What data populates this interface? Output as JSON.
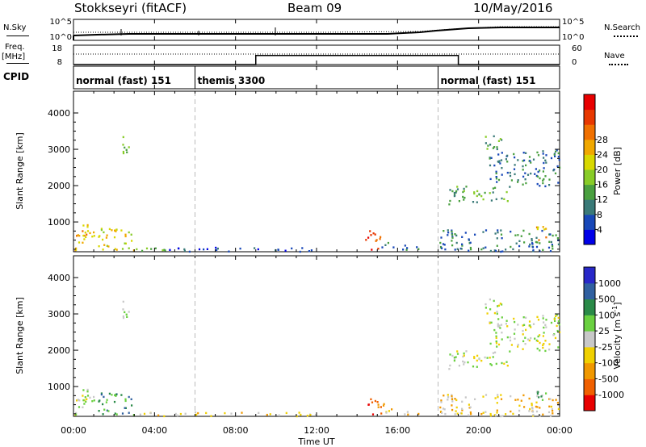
{
  "header": {
    "station": "Stokkseyri (fitACF)",
    "beam": "Beam 09",
    "date": "10/May/2016"
  },
  "noise_panel": {
    "left_label": "N.Sky",
    "right_label": "N.Search",
    "yticks_left": [
      "10^5",
      "10^0"
    ],
    "yticks_right": [
      "10^5",
      "10^0"
    ]
  },
  "freq_panel": {
    "left_label_1": "Freq.",
    "left_label_2": "[MHz]",
    "right_label": "Nave",
    "yticks_left": [
      "18",
      "8"
    ],
    "yticks_right": [
      "60",
      "0"
    ],
    "nave_steps": [
      {
        "from": 0,
        "to": 9,
        "value": 0
      },
      {
        "from": 9,
        "to": 19,
        "value": 28
      },
      {
        "from": 19,
        "to": 24,
        "value": 0
      }
    ]
  },
  "cpid_panel": {
    "label": "CPID",
    "segments": [
      {
        "start": 0,
        "end": 6,
        "text": "normal (fast) 151"
      },
      {
        "start": 6,
        "end": 18,
        "text": "themis 3300"
      },
      {
        "start": 18,
        "end": 24,
        "text": "normal (fast) 151"
      }
    ]
  },
  "x_axis": {
    "label": "Time UT",
    "ticks": [
      "00:00",
      "04:00",
      "08:00",
      "12:00",
      "16:00",
      "20:00",
      "00:00"
    ]
  },
  "y_axis": {
    "label": "Slant Range [km]",
    "ticks": [
      "1000",
      "2000",
      "3000",
      "4000"
    ]
  },
  "power_colorbar": {
    "label": "Power [dB]",
    "ticks": [
      "4",
      "8",
      "12",
      "16",
      "20",
      "24",
      "28"
    ],
    "colors": [
      "#0000e8",
      "#1848b8",
      "#3a7a78",
      "#4aa040",
      "#88cc28",
      "#d8d800",
      "#f0a800",
      "#f07000",
      "#e83800",
      "#e80000"
    ]
  },
  "velocity_colorbar": {
    "label": "Velocity [m s^-1]",
    "ticks": [
      "1000",
      "500",
      "100",
      "25",
      "-25",
      "-100",
      "-500",
      "-1000"
    ],
    "colors": [
      "#2828c8",
      "#3060a0",
      "#2a8a48",
      "#6ad040",
      "#c8c8c8",
      "#f0d000",
      "#f09800",
      "#f06000",
      "#e80000"
    ]
  },
  "chart_data": [
    {
      "type": "heatmap",
      "name": "Power",
      "xlabel": "Time UT",
      "ylabel": "Slant Range [km]",
      "xlim": [
        0,
        24
      ],
      "ylim": [
        180,
        4600
      ],
      "regions": [
        {
          "t0": 0.0,
          "t1": 1.0,
          "r0": 200,
          "r1": 1000,
          "level": 6
        },
        {
          "t0": 1.2,
          "t1": 3.0,
          "r0": 200,
          "r1": 850,
          "level": 5
        },
        {
          "t0": 2.2,
          "t1": 2.7,
          "r0": 2900,
          "r1": 3400,
          "level": 3
        },
        {
          "t0": 3.0,
          "t1": 4.5,
          "r0": 200,
          "r1": 320,
          "level": 4
        },
        {
          "t0": 4.5,
          "t1": 12.0,
          "r0": 200,
          "r1": 320,
          "level": 1
        },
        {
          "t0": 14.4,
          "t1": 15.2,
          "r0": 250,
          "r1": 800,
          "level": 8
        },
        {
          "t0": 15.2,
          "t1": 17.0,
          "r0": 250,
          "r1": 450,
          "level": 2
        },
        {
          "t0": 18.5,
          "t1": 21.5,
          "r0": 1500,
          "r1": 2000,
          "level": 3
        },
        {
          "t0": 20.5,
          "t1": 24.0,
          "r0": 2000,
          "r1": 3000,
          "level": 2
        },
        {
          "t0": 20.3,
          "t1": 21.2,
          "r0": 3000,
          "r1": 3500,
          "level": 3
        },
        {
          "t0": 18.0,
          "t1": 24.0,
          "r0": 200,
          "r1": 800,
          "level": 2
        },
        {
          "t0": 22.8,
          "t1": 23.3,
          "r0": 500,
          "r1": 900,
          "level": 6
        }
      ]
    },
    {
      "type": "heatmap",
      "name": "Velocity",
      "xlabel": "Time UT",
      "ylabel": "Slant Range [km]",
      "xlim": [
        0,
        24
      ],
      "ylim": [
        180,
        4600
      ],
      "regions": [
        {
          "t0": 0.0,
          "t1": 1.0,
          "r0": 200,
          "r1": 1000,
          "level": 4
        },
        {
          "t0": 1.2,
          "t1": 3.0,
          "r0": 200,
          "r1": 850,
          "level": 2
        },
        {
          "t0": 2.2,
          "t1": 2.7,
          "r0": 2900,
          "r1": 3400,
          "level": 3
        },
        {
          "t0": 3.0,
          "t1": 12.0,
          "r0": 200,
          "r1": 320,
          "level": 5
        },
        {
          "t0": 14.4,
          "t1": 15.4,
          "r0": 250,
          "r1": 700,
          "level": 7
        },
        {
          "t0": 15.4,
          "t1": 17.0,
          "r0": 250,
          "r1": 400,
          "level": 5
        },
        {
          "t0": 18.5,
          "t1": 21.5,
          "r0": 1500,
          "r1": 2000,
          "level": 4
        },
        {
          "t0": 20.5,
          "t1": 24.0,
          "r0": 2000,
          "r1": 3000,
          "level": 4
        },
        {
          "t0": 20.3,
          "t1": 21.2,
          "r0": 3000,
          "r1": 3500,
          "level": 4
        },
        {
          "t0": 18.0,
          "t1": 24.0,
          "r0": 200,
          "r1": 800,
          "level": 5
        },
        {
          "t0": 22.8,
          "t1": 23.3,
          "r0": 500,
          "r1": 900,
          "level": 3
        }
      ]
    }
  ]
}
